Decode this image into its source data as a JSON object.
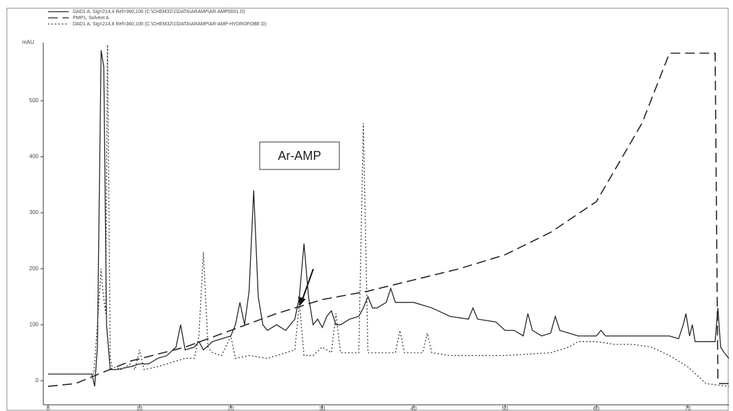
{
  "chart_data": {
    "type": "line",
    "ylabel": "mAU",
    "annotation": "Ar-AMP",
    "xlim": [
      0,
      74.5
    ],
    "ylim": [
      -43,
      604
    ],
    "xticks": [
      0,
      10,
      20,
      30,
      40,
      50,
      60,
      70
    ],
    "yticks": [
      0,
      100,
      200,
      300,
      400,
      500
    ],
    "series": [
      {
        "name": "DAD1 A, Sig=214,4 Ref=360,100 (C:\\CHEM32\\1\\DATA\\ARAMP\\AR-AMP0001.D)",
        "color": "#222222",
        "dash": "solid",
        "x": [
          0,
          4.8,
          5.1,
          5.4,
          5.8,
          6.1,
          6.4,
          6.8,
          7.5,
          9,
          10,
          11,
          12,
          13,
          14,
          14.5,
          15,
          16,
          16.5,
          17,
          18,
          19,
          20,
          20.5,
          21,
          21.5,
          22,
          22.5,
          23,
          23.5,
          24,
          25,
          26,
          27,
          27.5,
          28,
          28.5,
          29,
          29.5,
          30,
          30.5,
          31,
          31.5,
          32,
          33,
          34,
          34.5,
          35,
          35.5,
          36,
          37,
          37.5,
          38,
          40,
          42,
          44,
          46,
          46.5,
          47,
          49,
          50,
          51,
          52,
          52.5,
          53,
          54,
          55,
          55.5,
          56,
          58,
          60,
          60.5,
          61,
          63,
          65,
          66,
          68,
          69,
          69.5,
          69.8,
          70.2,
          70.5,
          70.8,
          72,
          73,
          73.3,
          73.6,
          74,
          74.5
        ],
        "values": [
          12,
          12,
          -10,
          60,
          590,
          560,
          100,
          20,
          20,
          25,
          30,
          30,
          40,
          45,
          60,
          100,
          55,
          60,
          70,
          55,
          70,
          75,
          80,
          100,
          140,
          100,
          160,
          340,
          150,
          100,
          90,
          100,
          90,
          110,
          150,
          245,
          150,
          100,
          110,
          95,
          115,
          125,
          100,
          100,
          110,
          115,
          130,
          150,
          130,
          130,
          140,
          165,
          140,
          140,
          130,
          115,
          110,
          130,
          110,
          105,
          90,
          90,
          80,
          120,
          90,
          80,
          85,
          115,
          90,
          80,
          80,
          90,
          80,
          80,
          80,
          80,
          80,
          75,
          100,
          120,
          80,
          100,
          70,
          70,
          70,
          130,
          60,
          50,
          40
        ]
      },
      {
        "name": "PMP1, Solvent A",
        "color": "#222222",
        "dash": "dashed",
        "x": [
          0,
          3,
          9,
          15,
          20,
          25,
          30,
          35,
          40,
          45,
          50,
          55,
          60,
          65,
          68,
          73,
          73.3,
          73.5,
          74.5
        ],
        "values": [
          -10,
          -5,
          35,
          60,
          90,
          120,
          145,
          160,
          180,
          200,
          225,
          265,
          320,
          460,
          585,
          585,
          0,
          -5,
          -5
        ]
      },
      {
        "name": "DAD1 A, Sig=214,8 Ref=360,100 (C:\\CHEM32\\1\\DATA\\ARAMP\\AR-AMP-HYDROFOBE.D)",
        "color": "#333333",
        "dash": "dotted",
        "x": [
          0,
          5,
          5.4,
          5.6,
          5.8,
          6,
          6.3,
          6.5,
          6.8,
          7,
          8,
          9,
          9.5,
          10,
          10.5,
          12,
          14,
          15,
          16,
          16.5,
          17,
          17.5,
          18,
          19,
          20,
          20.5,
          22,
          24,
          26,
          27,
          27.5,
          28,
          29,
          30,
          31,
          31.5,
          32,
          33,
          34,
          34.5,
          35,
          36,
          38,
          38.5,
          39,
          41,
          41.5,
          42,
          44,
          50,
          55,
          57,
          58,
          60,
          62,
          64,
          66,
          68,
          70,
          72,
          74.5
        ],
        "values": [
          12,
          12,
          100,
          150,
          200,
          160,
          120,
          600,
          40,
          25,
          20,
          30,
          20,
          55,
          20,
          25,
          35,
          40,
          40,
          80,
          230,
          60,
          50,
          45,
          80,
          40,
          45,
          40,
          50,
          55,
          140,
          45,
          45,
          60,
          50,
          120,
          50,
          50,
          50,
          460,
          50,
          50,
          50,
          90,
          50,
          50,
          85,
          50,
          45,
          45,
          50,
          60,
          70,
          70,
          65,
          65,
          60,
          45,
          25,
          -5,
          -10
        ]
      }
    ]
  }
}
